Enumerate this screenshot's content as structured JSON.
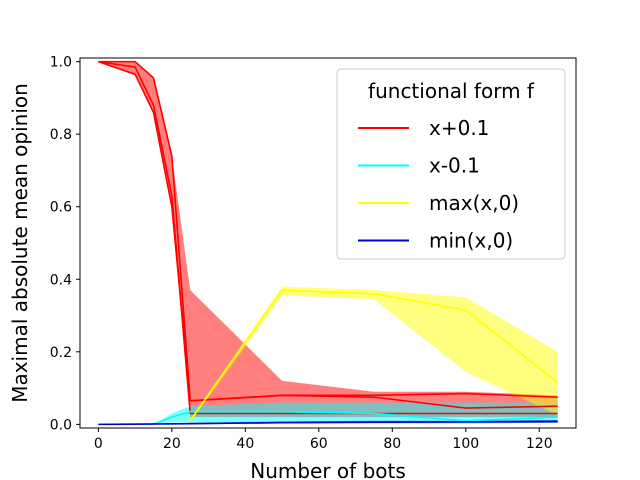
{
  "chart_data": {
    "type": "line",
    "title": "",
    "xlabel": "Number of bots",
    "ylabel": "Maximal absolute mean opinion",
    "xlim": [
      -5,
      130
    ],
    "ylim": [
      -0.01,
      1.01
    ],
    "xticks": [
      0,
      20,
      40,
      60,
      80,
      100,
      120
    ],
    "yticks": [
      0.0,
      0.2,
      0.4,
      0.6,
      0.8,
      1.0
    ],
    "xtick_labels": [
      "0",
      "20",
      "40",
      "60",
      "80",
      "100",
      "120"
    ],
    "ytick_labels": [
      "0.0",
      "0.2",
      "0.4",
      "0.6",
      "0.8",
      "1.0"
    ],
    "grid": false,
    "legend": {
      "title": "functional form f",
      "placement": "top-right"
    },
    "series": [
      {
        "name": "x+0.1",
        "color": "#ff0000",
        "x": [
          0,
          10,
          15,
          20,
          25,
          50,
          75,
          100,
          125
        ],
        "mean": [
          1.0,
          0.985,
          0.88,
          0.63,
          0.03,
          0.03,
          0.03,
          0.03,
          0.03
        ],
        "lower": [
          1.0,
          0.965,
          0.86,
          0.6,
          0.02,
          0.02,
          0.02,
          0.02,
          0.02
        ],
        "upper": [
          1.0,
          1.0,
          0.955,
          0.74,
          0.37,
          0.12,
          0.09,
          0.09,
          0.08
        ],
        "lines": [
          [
            1.0,
            1.0,
            0.955,
            0.74,
            0.065,
            0.08,
            0.075,
            0.045,
            0.05
          ],
          [
            1.0,
            0.985,
            0.88,
            0.63,
            0.03,
            0.03,
            0.03,
            0.03,
            0.03
          ],
          [
            1.0,
            0.965,
            0.86,
            0.6,
            0.065,
            0.08,
            0.08,
            0.085,
            0.075
          ]
        ]
      },
      {
        "name": "x-0.1",
        "color": "#00ffff",
        "x": [
          0,
          10,
          15,
          20,
          25,
          50,
          75,
          100,
          125
        ],
        "mean": [
          0.0,
          0.0,
          0.0,
          0.02,
          0.035,
          0.035,
          0.03,
          0.01,
          0.02
        ],
        "lower": [
          0.0,
          0.0,
          0.0,
          0.005,
          0.005,
          0.005,
          0.005,
          0.005,
          0.005
        ],
        "upper": [
          0.0,
          0.0,
          0.0,
          0.03,
          0.05,
          0.06,
          0.06,
          0.06,
          0.06
        ],
        "lines": [
          [
            0.0,
            0.0,
            0.0,
            0.02,
            0.035,
            0.035,
            0.03,
            0.01,
            0.02
          ]
        ]
      },
      {
        "name": "max(x,0)",
        "color": "#ffff00",
        "x": [
          25,
          50,
          75,
          100,
          125
        ],
        "mean": [
          0.01,
          0.37,
          0.36,
          0.315,
          0.115
        ],
        "lower": [
          0.005,
          0.355,
          0.345,
          0.145,
          0.025
        ],
        "upper": [
          0.015,
          0.38,
          0.37,
          0.35,
          0.2
        ],
        "lines": [
          [
            0.01,
            0.37,
            0.36,
            0.315,
            0.115
          ]
        ]
      },
      {
        "name": "min(x,0)",
        "color": "#0000cc",
        "x": [
          0,
          25,
          50,
          75,
          100,
          125
        ],
        "mean": [
          0.0,
          0.002,
          0.005,
          0.006,
          0.007,
          0.008
        ],
        "lower": [
          0.0,
          0.0,
          0.002,
          0.003,
          0.003,
          0.004
        ],
        "upper": [
          0.0,
          0.004,
          0.008,
          0.01,
          0.01,
          0.012
        ],
        "lines": [
          [
            0.0,
            0.002,
            0.005,
            0.006,
            0.007,
            0.008
          ]
        ]
      }
    ]
  }
}
